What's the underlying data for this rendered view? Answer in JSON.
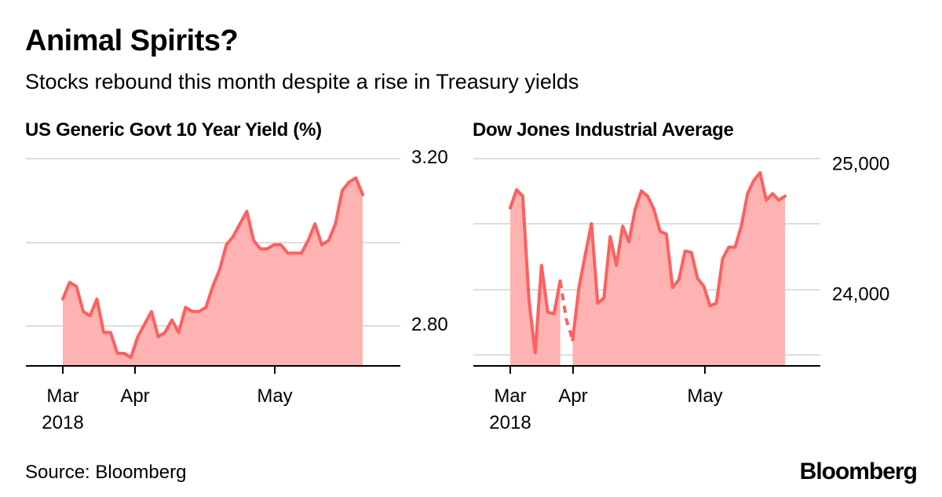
{
  "header": {
    "title": "Animal Spirits?",
    "subtitle": "Stocks rebound this month despite a rise in Treasury yields"
  },
  "footer": {
    "source": "Source: Bloomberg",
    "brand": "Bloomberg"
  },
  "colors": {
    "line": "#ff5f5f",
    "area": "#ffb2b2",
    "grid": "#dddddd",
    "axis": "#000000"
  },
  "chart_data": [
    {
      "type": "area",
      "title": "US Generic Govt 10 Year Yield (%)",
      "xlabel": "",
      "ylabel": "",
      "x_ticks": [
        "Mar\n2018",
        "Apr",
        "May"
      ],
      "y_ticks": [
        "3.20",
        "2.80"
      ],
      "ylim": [
        2.7,
        3.2
      ],
      "grid": true,
      "series": [
        {
          "values": [
            2.86,
            2.9,
            2.89,
            2.83,
            2.82,
            2.86,
            2.78,
            2.78,
            2.73,
            2.73,
            2.72,
            2.77,
            2.8,
            2.83,
            2.77,
            2.78,
            2.81,
            2.78,
            2.84,
            2.83,
            2.83,
            2.84,
            2.89,
            2.93,
            2.99,
            3.01,
            3.04,
            3.07,
            3.0,
            2.98,
            2.98,
            2.99,
            2.99,
            2.97,
            2.97,
            2.97,
            3.0,
            3.04,
            2.99,
            3.0,
            3.04,
            3.12,
            3.14,
            3.15,
            3.11
          ]
        }
      ]
    },
    {
      "type": "area",
      "title": "Dow Jones Industrial Average",
      "xlabel": "",
      "ylabel": "",
      "x_ticks": [
        "Mar\n2018",
        "Apr",
        "May"
      ],
      "y_ticks": [
        "25,000",
        "24,000"
      ],
      "ylim": [
        23450,
        25050
      ],
      "grid": true,
      "series": [
        {
          "values": [
            24660,
            24800,
            24750,
            23950,
            23550,
            24220,
            23860,
            23850,
            24100,
            23800,
            23650,
            24050,
            24300,
            24540,
            23930,
            23970,
            24440,
            24220,
            24520,
            24400,
            24650,
            24790,
            24750,
            24650,
            24480,
            24460,
            24050,
            24110,
            24330,
            24320,
            24120,
            24060,
            23910,
            23930,
            24270,
            24360,
            24360,
            24520,
            24770,
            24870,
            24930,
            24720,
            24770,
            24720,
            24750
          ],
          "gap_dashed_values": [
            24100,
            23800,
            23650
          ]
        }
      ]
    }
  ]
}
